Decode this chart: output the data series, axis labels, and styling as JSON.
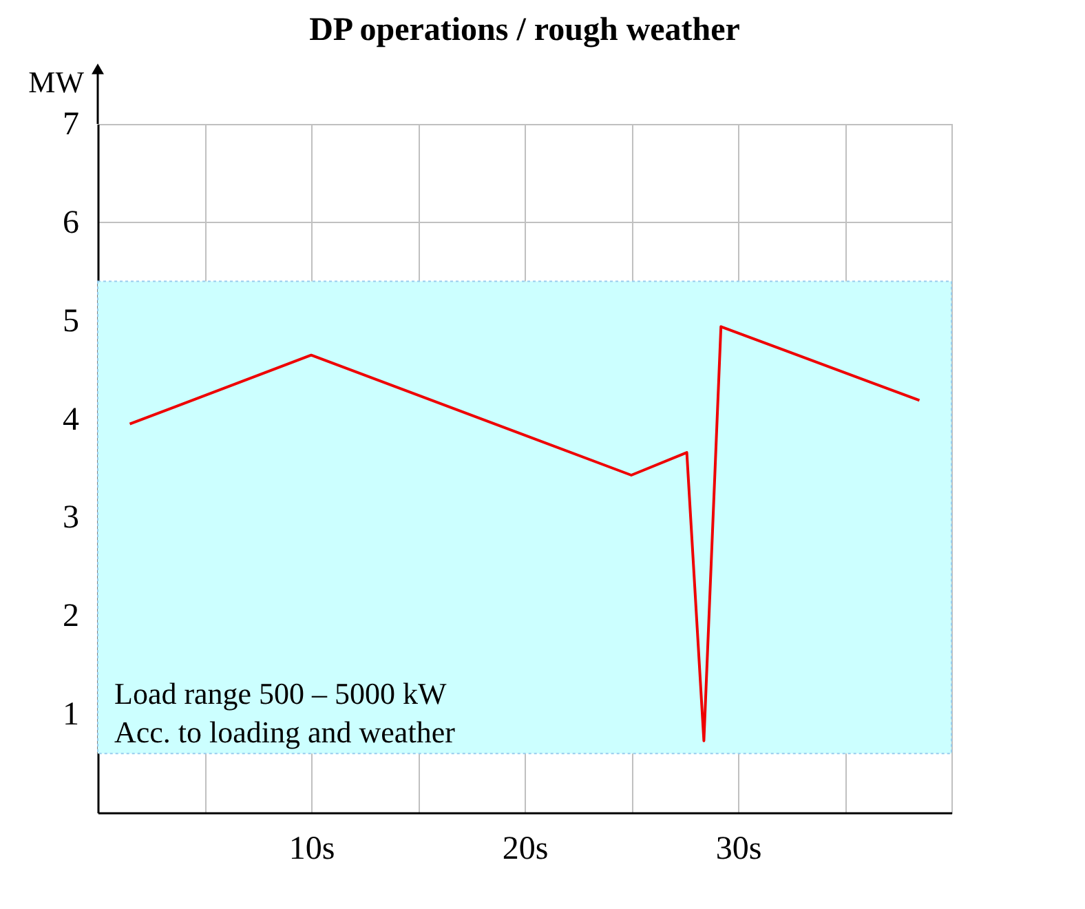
{
  "chart_data": {
    "type": "line",
    "title": "DP operations / rough weather",
    "ylabel": "MW",
    "x": [
      1.5,
      10,
      25,
      27.6,
      28.4,
      29.2,
      38.5
    ],
    "series": [
      {
        "color": "#ee0000",
        "values": [
          3.95,
          4.65,
          3.43,
          3.66,
          0.73,
          4.94,
          4.19
        ]
      }
    ],
    "xlim": [
      0,
      40
    ],
    "ylim": [
      0,
      7
    ],
    "xticks": [
      {
        "value": 0,
        "label": null
      },
      {
        "value": 5,
        "label": null
      },
      {
        "value": 10,
        "label": "10s"
      },
      {
        "value": 15,
        "label": null
      },
      {
        "value": 20,
        "label": "20s"
      },
      {
        "value": 25,
        "label": null
      },
      {
        "value": 30,
        "label": "30s"
      },
      {
        "value": 35,
        "label": null
      },
      {
        "value": 40,
        "label": null
      }
    ],
    "yticks": [
      1,
      2,
      3,
      4,
      5,
      6,
      7
    ],
    "bands": [
      {
        "axis": "y",
        "from": 0.6,
        "to": 5.4,
        "color": "#ccffff",
        "label": "Load range 500 – 5000 kW\nAcc. to loading and weather"
      }
    ],
    "grid": true,
    "marker": "none",
    "line_style": "solid"
  }
}
